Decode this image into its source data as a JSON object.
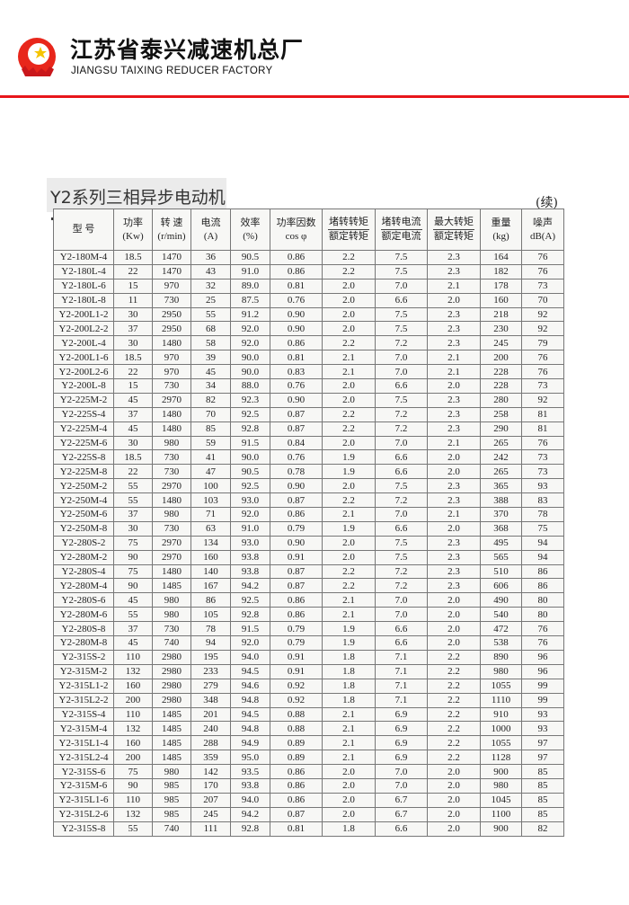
{
  "header": {
    "company_cn": "江苏省泰兴减速机总厂",
    "company_en": "JIANGSU TAIXING REDUCER FACTORY",
    "brand_color": "#e8161b"
  },
  "section": {
    "title": "Y2系列三相异步电动机",
    "continued": "(续)"
  },
  "table": {
    "columns": [
      {
        "l1": "型 号",
        "l2": ""
      },
      {
        "l1": "功率",
        "l2": "(Kw)"
      },
      {
        "l1": "转 速",
        "l2": "(r/min)"
      },
      {
        "l1": "电流",
        "l2": "(A)"
      },
      {
        "l1": "效率",
        "l2": "(%)"
      },
      {
        "l1": "功率因数",
        "l2": "cos φ"
      },
      {
        "l1": "堵转转矩",
        "l2": "额定转矩"
      },
      {
        "l1": "堵转电流",
        "l2": "额定电流"
      },
      {
        "l1": "最大转矩",
        "l2": "额定转矩"
      },
      {
        "l1": "重量",
        "l2": "(kg)"
      },
      {
        "l1": "噪声",
        "l2": "dB(A)"
      }
    ],
    "rows": [
      [
        "Y2-180M-4",
        "18.5",
        "1470",
        "36",
        "90.5",
        "0.86",
        "2.2",
        "7.5",
        "2.3",
        "164",
        "76"
      ],
      [
        "Y2-180L-4",
        "22",
        "1470",
        "43",
        "91.0",
        "0.86",
        "2.2",
        "7.5",
        "2.3",
        "182",
        "76"
      ],
      [
        "Y2-180L-6",
        "15",
        "970",
        "32",
        "89.0",
        "0.81",
        "2.0",
        "7.0",
        "2.1",
        "178",
        "73"
      ],
      [
        "Y2-180L-8",
        "11",
        "730",
        "25",
        "87.5",
        "0.76",
        "2.0",
        "6.6",
        "2.0",
        "160",
        "70"
      ],
      [
        "Y2-200L1-2",
        "30",
        "2950",
        "55",
        "91.2",
        "0.90",
        "2.0",
        "7.5",
        "2.3",
        "218",
        "92"
      ],
      [
        "Y2-200L2-2",
        "37",
        "2950",
        "68",
        "92.0",
        "0.90",
        "2.0",
        "7.5",
        "2.3",
        "230",
        "92"
      ],
      [
        "Y2-200L-4",
        "30",
        "1480",
        "58",
        "92.0",
        "0.86",
        "2.2",
        "7.2",
        "2.3",
        "245",
        "79"
      ],
      [
        "Y2-200L1-6",
        "18.5",
        "970",
        "39",
        "90.0",
        "0.81",
        "2.1",
        "7.0",
        "2.1",
        "200",
        "76"
      ],
      [
        "Y2-200L2-6",
        "22",
        "970",
        "45",
        "90.0",
        "0.83",
        "2.1",
        "7.0",
        "2.1",
        "228",
        "76"
      ],
      [
        "Y2-200L-8",
        "15",
        "730",
        "34",
        "88.0",
        "0.76",
        "2.0",
        "6.6",
        "2.0",
        "228",
        "73"
      ],
      [
        "Y2-225M-2",
        "45",
        "2970",
        "82",
        "92.3",
        "0.90",
        "2.0",
        "7.5",
        "2.3",
        "280",
        "92"
      ],
      [
        "Y2-225S-4",
        "37",
        "1480",
        "70",
        "92.5",
        "0.87",
        "2.2",
        "7.2",
        "2.3",
        "258",
        "81"
      ],
      [
        "Y2-225M-4",
        "45",
        "1480",
        "85",
        "92.8",
        "0.87",
        "2.2",
        "7.2",
        "2.3",
        "290",
        "81"
      ],
      [
        "Y2-225M-6",
        "30",
        "980",
        "59",
        "91.5",
        "0.84",
        "2.0",
        "7.0",
        "2.1",
        "265",
        "76"
      ],
      [
        "Y2-225S-8",
        "18.5",
        "730",
        "41",
        "90.0",
        "0.76",
        "1.9",
        "6.6",
        "2.0",
        "242",
        "73"
      ],
      [
        "Y2-225M-8",
        "22",
        "730",
        "47",
        "90.5",
        "0.78",
        "1.9",
        "6.6",
        "2.0",
        "265",
        "73"
      ],
      [
        "Y2-250M-2",
        "55",
        "2970",
        "100",
        "92.5",
        "0.90",
        "2.0",
        "7.5",
        "2.3",
        "365",
        "93"
      ],
      [
        "Y2-250M-4",
        "55",
        "1480",
        "103",
        "93.0",
        "0.87",
        "2.2",
        "7.2",
        "2.3",
        "388",
        "83"
      ],
      [
        "Y2-250M-6",
        "37",
        "980",
        "71",
        "92.0",
        "0.86",
        "2.1",
        "7.0",
        "2.1",
        "370",
        "78"
      ],
      [
        "Y2-250M-8",
        "30",
        "730",
        "63",
        "91.0",
        "0.79",
        "1.9",
        "6.6",
        "2.0",
        "368",
        "75"
      ],
      [
        "Y2-280S-2",
        "75",
        "2970",
        "134",
        "93.0",
        "0.90",
        "2.0",
        "7.5",
        "2.3",
        "495",
        "94"
      ],
      [
        "Y2-280M-2",
        "90",
        "2970",
        "160",
        "93.8",
        "0.91",
        "2.0",
        "7.5",
        "2.3",
        "565",
        "94"
      ],
      [
        "Y2-280S-4",
        "75",
        "1480",
        "140",
        "93.8",
        "0.87",
        "2.2",
        "7.2",
        "2.3",
        "510",
        "86"
      ],
      [
        "Y2-280M-4",
        "90",
        "1485",
        "167",
        "94.2",
        "0.87",
        "2.2",
        "7.2",
        "2.3",
        "606",
        "86"
      ],
      [
        "Y2-280S-6",
        "45",
        "980",
        "86",
        "92.5",
        "0.86",
        "2.1",
        "7.0",
        "2.0",
        "490",
        "80"
      ],
      [
        "Y2-280M-6",
        "55",
        "980",
        "105",
        "92.8",
        "0.86",
        "2.1",
        "7.0",
        "2.0",
        "540",
        "80"
      ],
      [
        "Y2-280S-8",
        "37",
        "730",
        "78",
        "91.5",
        "0.79",
        "1.9",
        "6.6",
        "2.0",
        "472",
        "76"
      ],
      [
        "Y2-280M-8",
        "45",
        "740",
        "94",
        "92.0",
        "0.79",
        "1.9",
        "6.6",
        "2.0",
        "538",
        "76"
      ],
      [
        "Y2-315S-2",
        "110",
        "2980",
        "195",
        "94.0",
        "0.91",
        "1.8",
        "7.1",
        "2.2",
        "890",
        "96"
      ],
      [
        "Y2-315M-2",
        "132",
        "2980",
        "233",
        "94.5",
        "0.91",
        "1.8",
        "7.1",
        "2.2",
        "980",
        "96"
      ],
      [
        "Y2-315L1-2",
        "160",
        "2980",
        "279",
        "94.6",
        "0.92",
        "1.8",
        "7.1",
        "2.2",
        "1055",
        "99"
      ],
      [
        "Y2-315L2-2",
        "200",
        "2980",
        "348",
        "94.8",
        "0.92",
        "1.8",
        "7.1",
        "2.2",
        "1110",
        "99"
      ],
      [
        "Y2-315S-4",
        "110",
        "1485",
        "201",
        "94.5",
        "0.88",
        "2.1",
        "6.9",
        "2.2",
        "910",
        "93"
      ],
      [
        "Y2-315M-4",
        "132",
        "1485",
        "240",
        "94.8",
        "0.88",
        "2.1",
        "6.9",
        "2.2",
        "1000",
        "93"
      ],
      [
        "Y2-315L1-4",
        "160",
        "1485",
        "288",
        "94.9",
        "0.89",
        "2.1",
        "6.9",
        "2.2",
        "1055",
        "97"
      ],
      [
        "Y2-315L2-4",
        "200",
        "1485",
        "359",
        "95.0",
        "0.89",
        "2.1",
        "6.9",
        "2.2",
        "1128",
        "97"
      ],
      [
        "Y2-315S-6",
        "75",
        "980",
        "142",
        "93.5",
        "0.86",
        "2.0",
        "7.0",
        "2.0",
        "900",
        "85"
      ],
      [
        "Y2-315M-6",
        "90",
        "985",
        "170",
        "93.8",
        "0.86",
        "2.0",
        "7.0",
        "2.0",
        "980",
        "85"
      ],
      [
        "Y2-315L1-6",
        "110",
        "985",
        "207",
        "94.0",
        "0.86",
        "2.0",
        "6.7",
        "2.0",
        "1045",
        "85"
      ],
      [
        "Y2-315L2-6",
        "132",
        "985",
        "245",
        "94.2",
        "0.87",
        "2.0",
        "6.7",
        "2.0",
        "1100",
        "85"
      ],
      [
        "Y2-315S-8",
        "55",
        "740",
        "111",
        "92.8",
        "0.81",
        "1.8",
        "6.6",
        "2.0",
        "900",
        "82"
      ]
    ]
  }
}
